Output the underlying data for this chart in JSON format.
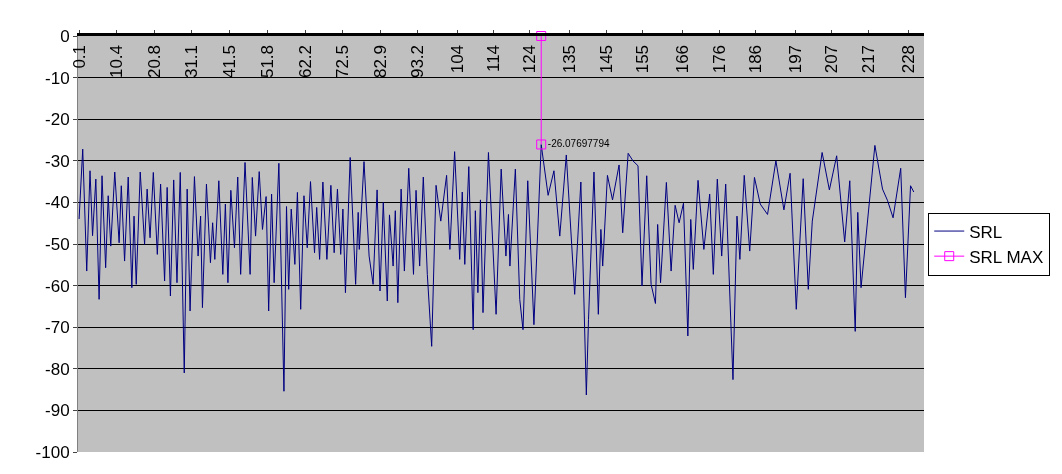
{
  "chart_data": {
    "type": "line",
    "x": [
      0.1,
      1.1,
      2.2,
      3.1,
      3.8,
      4.7,
      5.6,
      6.4,
      7.4,
      8.1,
      8.8,
      9.9,
      11.1,
      11.7,
      12.6,
      13.6,
      14.6,
      15.2,
      15.8,
      16.9,
      18.1,
      18.8,
      19.6,
      20.5,
      21.6,
      22.5,
      23.6,
      24.3,
      25.2,
      26.1,
      27.0,
      27.9,
      29.0,
      29.8,
      30.6,
      31.8,
      32.8,
      33.5,
      34.0,
      35.1,
      36.2,
      36.8,
      37.4,
      38.5,
      39.6,
      40.3,
      41.0,
      41.8,
      42.8,
      43.7,
      44.5,
      45.7,
      47.1,
      47.7,
      48.6,
      49.6,
      50.5,
      51.5,
      52.2,
      53.0,
      53.7,
      55.0,
      56.4,
      57.1,
      57.7,
      58.4,
      59.4,
      60.1,
      61.0,
      61.9,
      62.8,
      63.7,
      64.8,
      65.4,
      66.2,
      67.1,
      68.2,
      69.3,
      70.2,
      71.1,
      72.0,
      72.6,
      73.3,
      74.6,
      76.1,
      76.8,
      77.1,
      78.4,
      79.8,
      80.9,
      82.0,
      82.8,
      83.7,
      84.8,
      85.4,
      86.4,
      87.0,
      87.7,
      88.6,
      89.5,
      90.7,
      92.0,
      92.7,
      93.7,
      94.7,
      95.8,
      97.0,
      98.2,
      99.5,
      101.1,
      102.0,
      103.3,
      104.7,
      105.4,
      106.1,
      107.2,
      108.4,
      109.0,
      109.7,
      110.4,
      111.1,
      112.6,
      114.7,
      116.1,
      117.4,
      118.1,
      118.5,
      120.0,
      121.2,
      122.1,
      123.4,
      125.1,
      127.1,
      129.0,
      130.6,
      132.2,
      134.0,
      136.3,
      138.0,
      139.5,
      140.1,
      141.6,
      142.8,
      143.5,
      144.0,
      145.3,
      146.7,
      148.5,
      149.5,
      151.0,
      152.3,
      153.7,
      154.8,
      156.1,
      157.3,
      158.5,
      159.1,
      159.9,
      161.5,
      162.8,
      163.9,
      165.0,
      166.2,
      167.4,
      168.2,
      168.9,
      170.2,
      171.8,
      173.4,
      174.4,
      175.5,
      176.7,
      177.8,
      179.8,
      180.9,
      181.7,
      182.9,
      184.4,
      185.7,
      187.3,
      189.3,
      191.6,
      193.8,
      195.5,
      197.2,
      199.1,
      200.5,
      201.6,
      204.3,
      206.3,
      208.3,
      210.5,
      211.9,
      213.4,
      214.1,
      215.0,
      218.8,
      220.9,
      222.3,
      223.8,
      225.9,
      227.2,
      228.6,
      229.5
    ],
    "series": [
      {
        "name": "SRL",
        "color": "#000080",
        "values": [
          -44,
          -27.2,
          -56.5,
          -32.4,
          -48,
          -34.4,
          -63.3,
          -33.6,
          -55.7,
          -38.4,
          -50.5,
          -32.7,
          -49.7,
          -36,
          -54.1,
          -33.9,
          -60.5,
          -43.3,
          -59.7,
          -32.7,
          -50.1,
          -36.8,
          -48.5,
          -32.8,
          -52.5,
          -35.6,
          -58.9,
          -36.4,
          -62.5,
          -34.6,
          -59.3,
          -32.8,
          -81,
          -36.8,
          -66.1,
          -33.8,
          -52.9,
          -43.3,
          -65.3,
          -35.6,
          -54.5,
          -44.9,
          -53.7,
          -34.8,
          -57.3,
          -40.4,
          -59.3,
          -37.1,
          -50.9,
          -33.9,
          -57.3,
          -30.4,
          -57.3,
          -34,
          -48.1,
          -32.6,
          -46.5,
          -38.6,
          -66.1,
          -38,
          -59.3,
          -30.6,
          -85.4,
          -41,
          -60.9,
          -41.6,
          -54.9,
          -37.6,
          -65.7,
          -38.4,
          -50.9,
          -35,
          -52.1,
          -41.2,
          -53.7,
          -35.1,
          -53.7,
          -35.9,
          -52.1,
          -36.8,
          -52.5,
          -41.6,
          -61.7,
          -29.2,
          -59.7,
          -42.4,
          -51.3,
          -30.2,
          -52.9,
          -59.7,
          -37,
          -61.3,
          -40,
          -63.7,
          -43,
          -55.3,
          -42,
          -64.1,
          -36.8,
          -56.5,
          -31.8,
          -57.3,
          -37.1,
          -55.3,
          -33.9,
          -57.3,
          -74.6,
          -35.9,
          -44.5,
          -33.5,
          -51.3,
          -27.8,
          -53.7,
          -37.5,
          -54.9,
          -31.4,
          -70.6,
          -42,
          -61.7,
          -39.4,
          -66.5,
          -28,
          -66.9,
          -32,
          -52.9,
          -42.9,
          -55.3,
          -32,
          -63.3,
          -70.6,
          -34.8,
          -69.4,
          -26.1,
          -38.3,
          -32.4,
          -48.1,
          -28.6,
          -62.1,
          -35.1,
          -86.3,
          -68.2,
          -32.7,
          -66.9,
          -46.5,
          -55.3,
          -33.5,
          -39.4,
          -31,
          -47.3,
          -28.2,
          -30,
          -31.2,
          -60.1,
          -33.6,
          -59.7,
          -64.3,
          -45.3,
          -59.3,
          -35.2,
          -56.5,
          -40.7,
          -44.9,
          -40.2,
          -72.1,
          -44.1,
          -56.1,
          -34.7,
          -51.3,
          -38,
          -57.3,
          -34.4,
          -52.9,
          -35.6,
          -82.6,
          -43.3,
          -53.7,
          -33.5,
          -51.7,
          -34,
          -40.4,
          -42.9,
          -30,
          -41.8,
          -33,
          -65.7,
          -34.3,
          -60.9,
          -44.5,
          -28,
          -37,
          -28.8,
          -49.5,
          -34.8,
          -71,
          -42.4,
          -60.5,
          -26.3,
          -36.8,
          -39.6,
          -43.7,
          -31.8,
          -62.9,
          -36,
          -37.5
        ]
      },
      {
        "name": "SRL MAX",
        "color": "#ff00ff",
        "x": [
          127.1,
          127.1
        ],
        "values": [
          0,
          -26.07697794
        ],
        "marker": "square",
        "value_labels": [
          null,
          "-26.07697794"
        ]
      }
    ],
    "xlim": [
      -0.2,
      232.3
    ],
    "xticks": [
      0.1,
      10.4,
      20.8,
      31.1,
      41.5,
      51.8,
      62.2,
      72.5,
      82.9,
      93.2,
      104,
      114,
      124,
      135,
      145,
      155,
      166,
      176,
      186,
      197,
      207,
      217,
      228
    ],
    "ylim": [
      -100,
      0
    ],
    "yticks": [
      0,
      -10,
      -20,
      -30,
      -40,
      -50,
      -60,
      -70,
      -80,
      -90,
      -100
    ],
    "grid": "y",
    "legend": "right",
    "marker": "none",
    "line_style": "solid"
  }
}
